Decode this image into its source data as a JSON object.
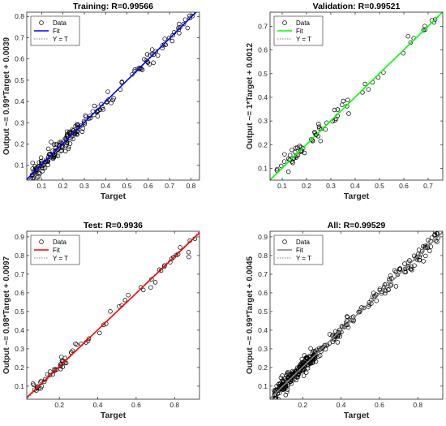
{
  "chart_data": [
    {
      "type": "scatter",
      "title": "Training: R=0.99566",
      "xlabel": "Target",
      "ylabel": "Output ~= 0.99*Target + 0.0039",
      "xlim": [
        0.03,
        0.84
      ],
      "ylim": [
        0.03,
        0.82
      ],
      "xticks": [
        0.1,
        0.2,
        0.3,
        0.4,
        0.5,
        0.6,
        0.7,
        0.8
      ],
      "yticks": [
        0.1,
        0.2,
        0.3,
        0.4,
        0.5,
        0.6,
        0.7,
        0.8
      ],
      "fit": {
        "slope": 0.99,
        "intercept": 0.0039,
        "color": "#0000ff"
      },
      "legend": {
        "placement": "top-left",
        "entries": [
          "Data",
          "Fit",
          "Y = T"
        ]
      },
      "point_count": 200
    },
    {
      "type": "scatter",
      "title": "Validation: R=0.99521",
      "xlabel": "Target",
      "ylabel": "Output ~= 1*Target + 0.0012",
      "xlim": [
        0.05,
        0.76
      ],
      "ylim": [
        0.05,
        0.76
      ],
      "xticks": [
        0.1,
        0.2,
        0.3,
        0.4,
        0.5,
        0.6,
        0.7
      ],
      "yticks": [
        0.1,
        0.2,
        0.3,
        0.4,
        0.5,
        0.6,
        0.7
      ],
      "fit": {
        "slope": 1,
        "intercept": 0.0012,
        "color": "#00ff00"
      },
      "legend": {
        "placement": "top-left",
        "entries": [
          "Data",
          "Fit",
          "Y = T"
        ]
      },
      "point_count": 70
    },
    {
      "type": "scatter",
      "title": "Test: R=0.9936",
      "xlabel": "Target",
      "ylabel": "Output ~= 0.98*Target + 0.0097",
      "xlim": [
        0.03,
        0.93
      ],
      "ylim": [
        0.03,
        0.93
      ],
      "xticks": [
        0.2,
        0.4,
        0.6,
        0.8
      ],
      "yticks": [
        0.1,
        0.2,
        0.3,
        0.4,
        0.5,
        0.6,
        0.7,
        0.8,
        0.9
      ],
      "fit": {
        "slope": 0.98,
        "intercept": 0.0097,
        "color": "#ff0000"
      },
      "legend": {
        "placement": "top-left",
        "entries": [
          "Data",
          "Fit",
          "Y = T"
        ]
      },
      "point_count": 70
    },
    {
      "type": "scatter",
      "title": "All: R=0.99529",
      "xlabel": "Target",
      "ylabel": "Output ~= 0.99*Target + 0.0045",
      "xlim": [
        0.03,
        0.93
      ],
      "ylim": [
        0.03,
        0.93
      ],
      "xticks": [
        0.2,
        0.4,
        0.6,
        0.8
      ],
      "yticks": [
        0.1,
        0.2,
        0.3,
        0.4,
        0.5,
        0.6,
        0.7,
        0.8,
        0.9
      ],
      "fit": {
        "slope": 0.99,
        "intercept": 0.0045,
        "color": "#808080"
      },
      "legend": {
        "placement": "top-left",
        "entries": [
          "Data",
          "Fit",
          "Y = T"
        ]
      },
      "point_count": 340
    }
  ]
}
